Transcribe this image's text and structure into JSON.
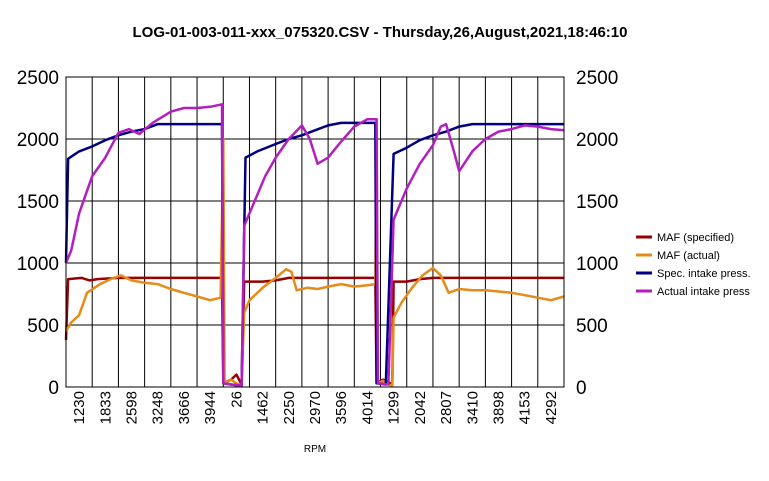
{
  "chart_data": {
    "type": "line",
    "title": "LOG-01-003-011-xxx_075320.CSV - Thursday,26,August,2021,18:46:10",
    "xlabel": "RPM",
    "ylabel": "",
    "ylim": [
      0,
      2500
    ],
    "yticks": [
      "0",
      "500",
      "1000",
      "1500",
      "2000",
      "2500"
    ],
    "x_tick_labels": [
      "1230",
      "1833",
      "2598",
      "3248",
      "3666",
      "3944",
      "26",
      "1462",
      "2250",
      "2970",
      "3596",
      "4014",
      "1299",
      "2042",
      "2807",
      "3410",
      "3898",
      "4153",
      "4292"
    ],
    "x_tick_positions": [
      0.5,
      1.5,
      2.5,
      3.5,
      4.5,
      5.5,
      6.5,
      7.5,
      8.5,
      9.5,
      10.5,
      11.5,
      12.5,
      13.5,
      14.5,
      15.5,
      16.5,
      17.5,
      18.5
    ],
    "xlim": [
      0,
      19
    ],
    "grid": true,
    "legend_position": "right",
    "series": [
      {
        "name": "MAF (specified)",
        "color": "#990000",
        "points": [
          [
            0,
            380
          ],
          [
            0.08,
            870
          ],
          [
            0.6,
            880
          ],
          [
            0.9,
            860
          ],
          [
            1.2,
            870
          ],
          [
            2,
            880
          ],
          [
            5.5,
            880
          ],
          [
            5.95,
            880
          ],
          [
            6.0,
            30
          ],
          [
            6.3,
            60
          ],
          [
            6.5,
            100
          ],
          [
            6.7,
            20
          ],
          [
            6.8,
            850
          ],
          [
            7.5,
            850
          ],
          [
            8,
            860
          ],
          [
            8.5,
            880
          ],
          [
            11.5,
            880
          ],
          [
            11.8,
            880
          ],
          [
            11.85,
            30
          ],
          [
            12.1,
            60
          ],
          [
            12.3,
            40
          ],
          [
            12.45,
            20
          ],
          [
            12.5,
            850
          ],
          [
            13,
            850
          ],
          [
            13.5,
            870
          ],
          [
            14,
            880
          ],
          [
            19,
            880
          ]
        ]
      },
      {
        "name": "MAF (actual)",
        "color": "#e68a1a",
        "points": [
          [
            0,
            450
          ],
          [
            0.2,
            520
          ],
          [
            0.5,
            580
          ],
          [
            0.8,
            760
          ],
          [
            1.3,
            830
          ],
          [
            1.7,
            870
          ],
          [
            2.1,
            900
          ],
          [
            2.5,
            860
          ],
          [
            3,
            840
          ],
          [
            3.5,
            830
          ],
          [
            4,
            790
          ],
          [
            4.5,
            760
          ],
          [
            5,
            730
          ],
          [
            5.5,
            700
          ],
          [
            5.9,
            720
          ],
          [
            6.0,
            2000
          ],
          [
            6.05,
            30
          ],
          [
            6.3,
            60
          ],
          [
            6.5,
            30
          ],
          [
            6.7,
            10
          ],
          [
            6.8,
            600
          ],
          [
            7,
            700
          ],
          [
            7.5,
            800
          ],
          [
            8,
            880
          ],
          [
            8.4,
            950
          ],
          [
            8.6,
            930
          ],
          [
            8.8,
            780
          ],
          [
            9.2,
            800
          ],
          [
            9.6,
            790
          ],
          [
            10,
            810
          ],
          [
            10.5,
            830
          ],
          [
            11,
            810
          ],
          [
            11.5,
            820
          ],
          [
            11.8,
            830
          ],
          [
            11.85,
            2000
          ],
          [
            11.9,
            30
          ],
          [
            12.1,
            50
          ],
          [
            12.3,
            20
          ],
          [
            12.45,
            10
          ],
          [
            12.5,
            560
          ],
          [
            12.8,
            680
          ],
          [
            13.2,
            800
          ],
          [
            13.6,
            900
          ],
          [
            14,
            960
          ],
          [
            14.3,
            900
          ],
          [
            14.6,
            760
          ],
          [
            15,
            790
          ],
          [
            15.5,
            780
          ],
          [
            16,
            780
          ],
          [
            16.5,
            770
          ],
          [
            17,
            760
          ],
          [
            17.5,
            740
          ],
          [
            18,
            720
          ],
          [
            18.5,
            700
          ],
          [
            19,
            730
          ]
        ]
      },
      {
        "name": "Spec. intake press.",
        "color": "#000080",
        "points": [
          [
            0,
            1000
          ],
          [
            0.08,
            1840
          ],
          [
            0.5,
            1900
          ],
          [
            1,
            1940
          ],
          [
            1.5,
            1990
          ],
          [
            2,
            2030
          ],
          [
            2.5,
            2060
          ],
          [
            3,
            2080
          ],
          [
            3.5,
            2120
          ],
          [
            5.95,
            2120
          ],
          [
            6.0,
            30
          ],
          [
            6.3,
            20
          ],
          [
            6.7,
            10
          ],
          [
            6.85,
            1850
          ],
          [
            7.3,
            1900
          ],
          [
            8,
            1960
          ],
          [
            8.5,
            2000
          ],
          [
            9,
            2030
          ],
          [
            9.5,
            2070
          ],
          [
            10,
            2110
          ],
          [
            10.5,
            2130
          ],
          [
            11.8,
            2130
          ],
          [
            11.85,
            30
          ],
          [
            12.2,
            20
          ],
          [
            12.5,
            1880
          ],
          [
            13,
            1930
          ],
          [
            13.5,
            1990
          ],
          [
            14,
            2030
          ],
          [
            14.5,
            2060
          ],
          [
            15,
            2100
          ],
          [
            15.5,
            2120
          ],
          [
            19,
            2120
          ]
        ]
      },
      {
        "name": "Actual intake press",
        "color": "#b31fbf",
        "points": [
          [
            0,
            1000
          ],
          [
            0.2,
            1100
          ],
          [
            0.5,
            1400
          ],
          [
            1,
            1700
          ],
          [
            1.5,
            1850
          ],
          [
            2,
            2050
          ],
          [
            2.4,
            2080
          ],
          [
            2.8,
            2040
          ],
          [
            3.3,
            2130
          ],
          [
            4,
            2220
          ],
          [
            4.5,
            2250
          ],
          [
            5,
            2250
          ],
          [
            5.5,
            2260
          ],
          [
            5.95,
            2280
          ],
          [
            6.0,
            30
          ],
          [
            6.3,
            20
          ],
          [
            6.7,
            10
          ],
          [
            6.8,
            1300
          ],
          [
            7.2,
            1500
          ],
          [
            7.6,
            1700
          ],
          [
            8,
            1850
          ],
          [
            8.5,
            2000
          ],
          [
            9,
            2110
          ],
          [
            9.3,
            2000
          ],
          [
            9.6,
            1800
          ],
          [
            10,
            1850
          ],
          [
            10.5,
            1980
          ],
          [
            11,
            2100
          ],
          [
            11.5,
            2160
          ],
          [
            11.85,
            2160
          ],
          [
            11.9,
            30
          ],
          [
            12.3,
            20
          ],
          [
            12.5,
            1350
          ],
          [
            13,
            1600
          ],
          [
            13.5,
            1800
          ],
          [
            14,
            1950
          ],
          [
            14.3,
            2100
          ],
          [
            14.5,
            2120
          ],
          [
            14.8,
            1900
          ],
          [
            15,
            1740
          ],
          [
            15.5,
            1900
          ],
          [
            16,
            2000
          ],
          [
            16.5,
            2060
          ],
          [
            17,
            2080
          ],
          [
            17.5,
            2110
          ],
          [
            18,
            2100
          ],
          [
            18.5,
            2080
          ],
          [
            19,
            2070
          ]
        ]
      }
    ]
  }
}
